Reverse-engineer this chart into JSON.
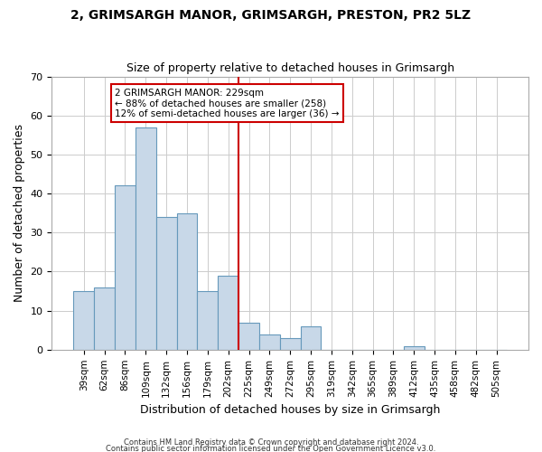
{
  "title": "2, GRIMSARGH MANOR, GRIMSARGH, PRESTON, PR2 5LZ",
  "subtitle": "Size of property relative to detached houses in Grimsargh",
  "xlabel": "Distribution of detached houses by size in Grimsargh",
  "ylabel": "Number of detached properties",
  "footnote1": "Contains HM Land Registry data © Crown copyright and database right 2024.",
  "footnote2": "Contains public sector information licensed under the Open Government Licence v3.0.",
  "bar_labels": [
    "39sqm",
    "62sqm",
    "86sqm",
    "109sqm",
    "132sqm",
    "156sqm",
    "179sqm",
    "202sqm",
    "225sqm",
    "249sqm",
    "272sqm",
    "295sqm",
    "319sqm",
    "342sqm",
    "365sqm",
    "389sqm",
    "412sqm",
    "435sqm",
    "458sqm",
    "482sqm",
    "505sqm"
  ],
  "bar_values": [
    15,
    16,
    42,
    57,
    34,
    35,
    15,
    19,
    7,
    4,
    3,
    6,
    0,
    0,
    0,
    0,
    1,
    0,
    0,
    0,
    0
  ],
  "bar_color": "#c8d8e8",
  "bar_edge_color": "#6699bb",
  "vline_x": 8.0,
  "vline_color": "#cc0000",
  "ylim": [
    0,
    70
  ],
  "annotation_title": "2 GRIMSARGH MANOR: 229sqm",
  "annotation_line1": "← 88% of detached houses are smaller (258)",
  "annotation_line2": "12% of semi-detached houses are larger (36) →",
  "annotation_box_color": "#ffffff",
  "annotation_box_edge": "#cc0000",
  "grid_color": "#cccccc",
  "background_color": "#ffffff",
  "title_fontsize": 10,
  "subtitle_fontsize": 9
}
